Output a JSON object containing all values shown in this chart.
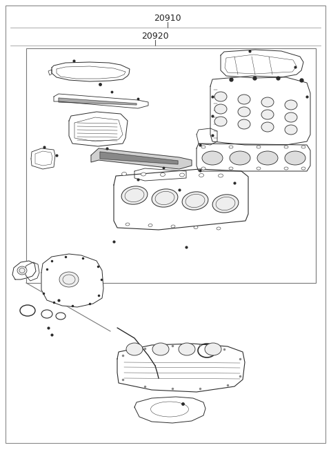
{
  "label_20910": "20910",
  "label_20920": "20920",
  "bg_color": "#ffffff",
  "fig_width": 4.8,
  "fig_height": 6.55,
  "dpi": 100,
  "lc": "#2a2a2a",
  "lc_thin": "#555555",
  "fc_part": "#f5f5f5",
  "fc_white": "#ffffff"
}
